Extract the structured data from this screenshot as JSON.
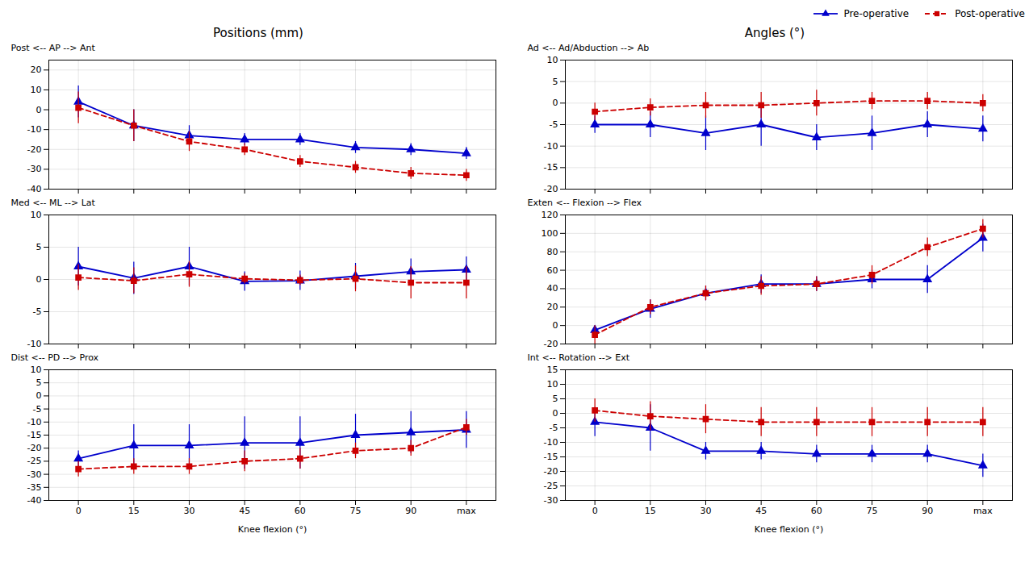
{
  "chart_data": [
    {
      "type": "line",
      "title": "Positions (mm)",
      "y_label": "Post <-- AP --> Ant",
      "x": [
        0,
        15,
        30,
        45,
        60,
        75,
        90,
        105
      ],
      "xlim": [
        -8,
        113
      ],
      "xticks": [
        0,
        15,
        30,
        45,
        60,
        75,
        90,
        {
          "value": 105,
          "label": "max"
        }
      ],
      "ylim": [
        -40,
        25
      ],
      "yticks": [
        -40,
        -30,
        -20,
        -10,
        0,
        10,
        20
      ],
      "grid": true,
      "tick_labels": "y",
      "series": [
        {
          "name": "Pre-operative",
          "color": "#0000cc",
          "marker": "triangle",
          "line_style": "solid",
          "values": [
            4,
            -8,
            -13,
            -15,
            -15,
            -19,
            -20,
            -22
          ],
          "error": [
            8,
            8,
            5,
            3,
            3,
            3,
            3,
            3
          ]
        },
        {
          "name": "Post-operative",
          "color": "#cc0000",
          "marker": "square",
          "line_style": "dashed",
          "values": [
            1,
            -8,
            -16,
            -20,
            -26,
            -29,
            -32,
            -33
          ],
          "error": [
            8,
            8,
            5,
            3,
            3,
            3,
            3,
            3
          ]
        }
      ]
    },
    {
      "type": "line",
      "y_label": "Med <-- ML --> Lat",
      "x": [
        0,
        15,
        30,
        45,
        60,
        75,
        90,
        105
      ],
      "xlim": [
        -8,
        113
      ],
      "xticks": [
        0,
        15,
        30,
        45,
        60,
        75,
        90,
        {
          "value": 105,
          "label": "max"
        }
      ],
      "ylim": [
        -10,
        10
      ],
      "yticks": [
        -10,
        -5,
        0,
        5,
        10
      ],
      "grid": true,
      "tick_labels": "y",
      "series": [
        {
          "name": "Pre-operative",
          "color": "#0000cc",
          "marker": "triangle",
          "line_style": "solid",
          "values": [
            2.0,
            0.2,
            2.0,
            -0.3,
            -0.2,
            0.5,
            1.2,
            1.5
          ],
          "error": [
            3.0,
            2.5,
            3.0,
            1.5,
            1.5,
            2.0,
            2.0,
            2.0
          ]
        },
        {
          "name": "Post-operative",
          "color": "#cc0000",
          "marker": "square",
          "line_style": "dashed",
          "values": [
            0.3,
            -0.2,
            0.8,
            0.1,
            -0.1,
            0.1,
            -0.5,
            -0.5
          ],
          "error": [
            2.0,
            2.0,
            2.0,
            0.8,
            0.8,
            2.0,
            2.5,
            2.5
          ]
        }
      ]
    },
    {
      "type": "line",
      "y_label": "Dist <-- PD --> Prox",
      "x_label": "Knee flexion (°)",
      "x": [
        0,
        15,
        30,
        45,
        60,
        75,
        90,
        105
      ],
      "xlim": [
        -8,
        113
      ],
      "xticks": [
        0,
        15,
        30,
        45,
        60,
        75,
        90,
        {
          "value": 105,
          "label": "max"
        }
      ],
      "ylim": [
        -40,
        10
      ],
      "yticks": [
        -40,
        -35,
        -30,
        -25,
        -20,
        -15,
        -10,
        -5,
        0,
        5,
        10
      ],
      "grid": true,
      "series": [
        {
          "name": "Pre-operative",
          "color": "#0000cc",
          "marker": "triangle",
          "line_style": "solid",
          "values": [
            -24,
            -19,
            -19,
            -18,
            -18,
            -15,
            -14,
            -13
          ],
          "error": [
            3,
            8,
            8,
            10,
            10,
            8,
            8,
            7
          ]
        },
        {
          "name": "Post-operative",
          "color": "#cc0000",
          "marker": "square",
          "line_style": "dashed",
          "values": [
            -28,
            -27,
            -27,
            -25,
            -24,
            -21,
            -20,
            -12
          ],
          "error": [
            3,
            3,
            3,
            4,
            4,
            3,
            3,
            3
          ]
        }
      ]
    },
    {
      "type": "line",
      "title": "Angles (°)",
      "y_label": "Ad <-- Ad/Abduction --> Ab",
      "legend": "upper right",
      "x": [
        0,
        15,
        30,
        45,
        60,
        75,
        90,
        105
      ],
      "xlim": [
        -8,
        113
      ],
      "xticks": [
        0,
        15,
        30,
        45,
        60,
        75,
        90,
        {
          "value": 105,
          "label": "max"
        }
      ],
      "ylim": [
        -20,
        10
      ],
      "yticks": [
        -20,
        -15,
        -10,
        -5,
        0,
        5,
        10
      ],
      "grid": true,
      "tick_labels": "y",
      "series": [
        {
          "name": "Pre-operative",
          "color": "#0000cc",
          "marker": "triangle",
          "line_style": "solid",
          "values": [
            -5,
            -5,
            -7,
            -5,
            -8,
            -7,
            -5,
            -6
          ],
          "error": [
            2,
            3,
            4,
            5,
            3,
            4,
            3,
            3
          ]
        },
        {
          "name": "Post-operative",
          "color": "#cc0000",
          "marker": "square",
          "line_style": "dashed",
          "values": [
            -2,
            -1,
            -0.5,
            -0.5,
            0,
            0.5,
            0.5,
            0
          ],
          "error": [
            2,
            2,
            3,
            3,
            3,
            2,
            2,
            2
          ]
        }
      ]
    },
    {
      "type": "line",
      "y_label": "Exten <-- Flexion --> Flex",
      "x": [
        0,
        15,
        30,
        45,
        60,
        75,
        90,
        105
      ],
      "xlim": [
        -8,
        113
      ],
      "xticks": [
        0,
        15,
        30,
        45,
        60,
        75,
        90,
        {
          "value": 105,
          "label": "max"
        }
      ],
      "ylim": [
        -20,
        120
      ],
      "yticks": [
        -20,
        0,
        20,
        40,
        60,
        80,
        100,
        120
      ],
      "grid": true,
      "tick_labels": "y",
      "series": [
        {
          "name": "Pre-operative",
          "color": "#0000cc",
          "marker": "triangle",
          "line_style": "solid",
          "values": [
            -5,
            18,
            35,
            45,
            45,
            50,
            50,
            95
          ],
          "error": [
            5,
            10,
            8,
            10,
            8,
            10,
            15,
            15
          ]
        },
        {
          "name": "Post-operative",
          "color": "#cc0000",
          "marker": "square",
          "line_style": "dashed",
          "values": [
            -10,
            20,
            35,
            43,
            45,
            55,
            85,
            105
          ],
          "error": [
            10,
            8,
            8,
            10,
            8,
            10,
            10,
            10
          ]
        }
      ]
    },
    {
      "type": "line",
      "y_label": "Int <-- Rotation --> Ext",
      "x_label": "Knee flexion (°)",
      "x": [
        0,
        15,
        30,
        45,
        60,
        75,
        90,
        105
      ],
      "xlim": [
        -8,
        113
      ],
      "xticks": [
        0,
        15,
        30,
        45,
        60,
        75,
        90,
        {
          "value": 105,
          "label": "max"
        }
      ],
      "ylim": [
        -30,
        15
      ],
      "yticks": [
        -30,
        -25,
        -20,
        -15,
        -10,
        -5,
        0,
        5,
        10,
        15
      ],
      "grid": true,
      "series": [
        {
          "name": "Pre-operative",
          "color": "#0000cc",
          "marker": "triangle",
          "line_style": "solid",
          "values": [
            -3,
            -5,
            -13,
            -13,
            -14,
            -14,
            -14,
            -18
          ],
          "error": [
            5,
            8,
            3,
            3,
            3,
            3,
            3,
            4
          ]
        },
        {
          "name": "Post-operative",
          "color": "#cc0000",
          "marker": "square",
          "line_style": "dashed",
          "values": [
            1,
            -1,
            -2,
            -3,
            -3,
            -3,
            -3,
            -3
          ],
          "error": [
            4,
            5,
            5,
            5,
            5,
            5,
            5,
            5
          ]
        }
      ]
    }
  ]
}
